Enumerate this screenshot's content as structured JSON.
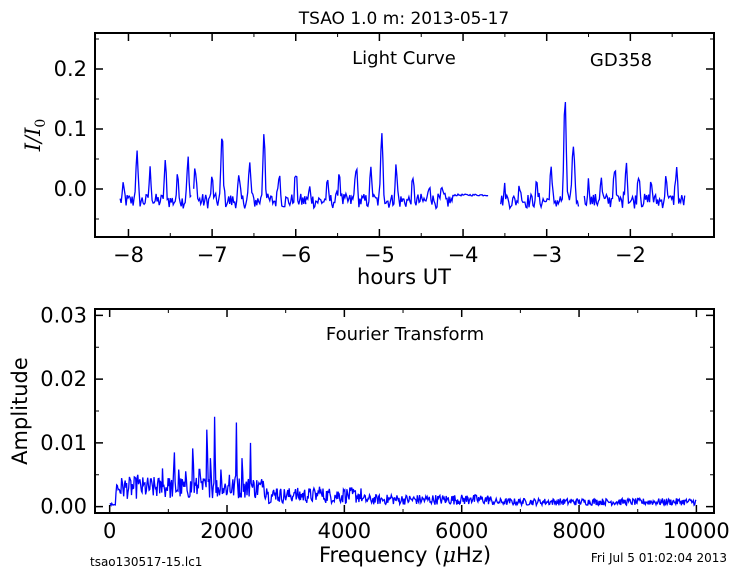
{
  "figure": {
    "title": "TSAO 1.0 m:  2013-05-17",
    "footer_left": "tsao130517-15.lc1",
    "footer_right": "Fri Jul  5 01:02:04 2013",
    "line_color": "#0000ff"
  },
  "chart_data": [
    {
      "type": "line",
      "title": "Light Curve",
      "annotation": "GD358",
      "xlabel": "hours UT",
      "ylabel": "I/I0",
      "ylabel_base": "I",
      "ylabel_sep": "/",
      "ylabel_sub": "0",
      "xlim": [
        -8.4,
        -1.0
      ],
      "ylim": [
        -0.08,
        0.26
      ],
      "xticks": [
        -8,
        -7,
        -6,
        -5,
        -4,
        -3,
        -2
      ],
      "xtick_labels": [
        "−8",
        "−7",
        "−6",
        "−5",
        "−4",
        "−3",
        "−2"
      ],
      "yticks": [
        0.0,
        0.1,
        0.2
      ],
      "ytick_labels": [
        "0.0",
        "0.1",
        "0.2"
      ],
      "segments": [
        {
          "x": [
            -8.1,
            -7.25
          ],
          "pulse_times": [
            -8.06,
            -7.9,
            -7.74,
            -7.56,
            -7.41,
            -7.29
          ],
          "pulse_amps": [
            0.02,
            0.08,
            0.05,
            0.06,
            0.04,
            0.07
          ]
        },
        {
          "x": [
            -7.22,
            -5.88
          ],
          "pulse_times": [
            -7.2,
            -7.0,
            -6.88,
            -6.68,
            -6.55,
            -6.38,
            -6.2,
            -6.0
          ],
          "pulse_amps": [
            0.06,
            0.035,
            0.11,
            0.035,
            0.06,
            0.12,
            0.05,
            0.045
          ]
        },
        {
          "x": [
            -5.88,
            -4.12
          ],
          "pulse_times": [
            -5.83,
            -5.62,
            -5.48,
            -5.28,
            -5.1,
            -4.97,
            -4.8,
            -4.6,
            -4.4,
            -4.25
          ],
          "pulse_amps": [
            0.02,
            0.025,
            0.05,
            0.06,
            0.05,
            0.12,
            0.055,
            0.03,
            0.03,
            0.015
          ]
        },
        {
          "x": [
            -4.12,
            -3.7
          ],
          "flat": -0.01
        },
        {
          "x": [
            -3.55,
            -2.62
          ],
          "pulse_times": [
            -3.5,
            -3.32,
            -3.12,
            -2.95,
            -2.78,
            -2.68
          ],
          "pulse_amps": [
            0.02,
            0.03,
            0.025,
            0.05,
            0.17,
            0.1
          ]
        },
        {
          "x": [
            -2.55,
            -1.35
          ],
          "pulse_times": [
            -2.5,
            -2.35,
            -2.19,
            -2.05,
            -1.9,
            -1.75,
            -1.57,
            -1.45
          ],
          "pulse_amps": [
            0.03,
            0.035,
            0.06,
            0.07,
            0.05,
            0.03,
            0.04,
            0.055
          ]
        }
      ]
    },
    {
      "type": "line",
      "title": "Fourier Transform",
      "xlabel": "Frequency (μHz)",
      "xlabel_pre": "Frequency (",
      "xlabel_unit": "μ",
      "xlabel_post": "Hz)",
      "ylabel": "Amplitude",
      "xlim": [
        -250,
        10300
      ],
      "ylim": [
        -0.001,
        0.031
      ],
      "xticks": [
        0,
        2000,
        4000,
        6000,
        8000,
        10000
      ],
      "xtick_labels": [
        "0",
        "2000",
        "4000",
        "6000",
        "8000",
        "10000"
      ],
      "yticks": [
        0.0,
        0.01,
        0.02,
        0.03
      ],
      "ytick_labels": [
        "0.00",
        "0.01",
        "0.02",
        "0.03"
      ],
      "peaks": [
        {
          "f": 220,
          "a": 0.0043
        },
        {
          "f": 440,
          "a": 0.0035
        },
        {
          "f": 480,
          "a": 0.005
        },
        {
          "f": 700,
          "a": 0.0045
        },
        {
          "f": 900,
          "a": 0.006
        },
        {
          "f": 1000,
          "a": 0.005
        },
        {
          "f": 1100,
          "a": 0.0095
        },
        {
          "f": 1180,
          "a": 0.0065
        },
        {
          "f": 1300,
          "a": 0.0062
        },
        {
          "f": 1420,
          "a": 0.0102
        },
        {
          "f": 1530,
          "a": 0.0075
        },
        {
          "f": 1660,
          "a": 0.0135
        },
        {
          "f": 1720,
          "a": 0.0085
        },
        {
          "f": 1790,
          "a": 0.0145
        },
        {
          "f": 1900,
          "a": 0.0065
        },
        {
          "f": 2040,
          "a": 0.005
        },
        {
          "f": 2160,
          "a": 0.0132
        },
        {
          "f": 2260,
          "a": 0.0085
        },
        {
          "f": 2400,
          "a": 0.01
        },
        {
          "f": 2620,
          "a": 0.0045
        },
        {
          "f": 2850,
          "a": 0.0035
        },
        {
          "f": 3150,
          "a": 0.0028
        },
        {
          "f": 3580,
          "a": 0.0035
        },
        {
          "f": 3720,
          "a": 0.0025
        },
        {
          "f": 4000,
          "a": 0.0028
        },
        {
          "f": 4800,
          "a": 0.0018
        },
        {
          "f": 6150,
          "a": 0.0017
        }
      ]
    }
  ]
}
